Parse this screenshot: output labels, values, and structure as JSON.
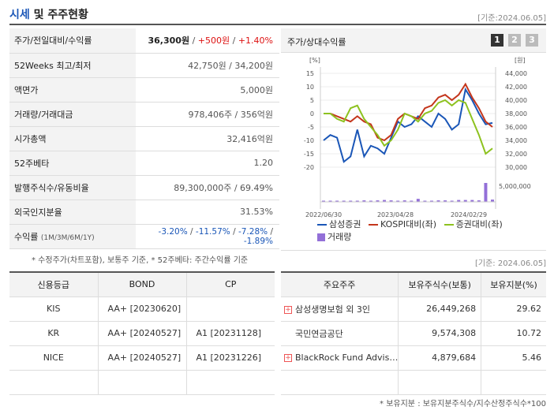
{
  "header": {
    "title_a": "시세",
    "title_b": " 및 주주현황",
    "date": "[기준:2024.06.05]"
  },
  "summary": {
    "price_label": "주가/전일대비/수익률",
    "price": "36,300원",
    "change": "+500원",
    "change_pct": "+1.40%",
    "w52_label": "52Weeks 최고/최저",
    "w52_value": "42,750원 / 34,200원",
    "par_label": "액면가",
    "par_value": "5,000원",
    "volume_label": "거래량/거래대금",
    "volume_value": "978,406주 / 356억원",
    "mcap_label": "시가총액",
    "mcap_value": "32,416억원",
    "beta_label": "52주베타",
    "beta_value": "1.20",
    "shares_label": "발행주식수/유동비율",
    "shares_value": "89,300,000주 / 69.49%",
    "foreign_label": "외국인지분율",
    "foreign_value": "31.53%",
    "return_label": "수익률",
    "return_sub": "(1M/3M/6M/1Y)",
    "return_1m": "-3.20%",
    "return_3m": "-11.57%",
    "return_6m": "-7.28%",
    "return_1y": "-1.89%"
  },
  "chart_panel": {
    "title": "주가/상대수익률",
    "pages": [
      "1",
      "2",
      "3"
    ]
  },
  "chart_data": {
    "type": "line",
    "left_unit": "[%]",
    "right_unit": "[원]",
    "left_ticks": [
      "15",
      "10",
      "5",
      "0",
      "-5",
      "-10",
      "-15",
      "-20"
    ],
    "right_ticks": [
      "44,000",
      "42,000",
      "40,000",
      "38,000",
      "36,000",
      "34,000",
      "32,000",
      "30,000"
    ],
    "volume_tick": "5,000,000",
    "x_labels": [
      "2022/06/30",
      "2023/04/28",
      "2024/02/29"
    ],
    "series": [
      {
        "name": "삼성증권",
        "color": "#1a56b7",
        "values": [
          -10,
          -8,
          -9,
          -18,
          -16,
          -6,
          -16,
          -12,
          -13,
          -15,
          -9,
          -3,
          -5,
          -4,
          -1,
          -3,
          -5,
          0,
          -2,
          -6,
          -4,
          9,
          5,
          0,
          -4,
          -3.5
        ]
      },
      {
        "name": "KOSPI대비(좌)",
        "color": "#c4361c",
        "values": [
          0,
          0,
          -1,
          -2,
          -3,
          -1,
          -3,
          -4,
          -9,
          -10,
          -8,
          -2,
          0,
          -1,
          -2,
          2,
          3,
          6,
          7,
          5,
          7,
          11,
          6,
          2,
          -3,
          -5
        ]
      },
      {
        "name": "증권대비(좌)",
        "color": "#8dc21f",
        "values": [
          0,
          0,
          -2,
          -3,
          2,
          3,
          -2,
          -5,
          -8,
          -12,
          -10,
          -6,
          0,
          -1,
          -3,
          0,
          1,
          4,
          5,
          3,
          5,
          4,
          -2,
          -8,
          -15,
          -13
        ]
      }
    ],
    "volume": {
      "name": "거래량",
      "color": "#9370d8",
      "values": [
        0.3,
        0.3,
        0.3,
        0.3,
        0.3,
        0.3,
        0.4,
        0.3,
        0.4,
        0.5,
        0.4,
        0.3,
        0.4,
        0.3,
        0.8,
        0.3,
        0.3,
        0.4,
        0.4,
        0.3,
        0.5,
        0.5,
        0.5,
        0.4,
        5,
        0.6
      ]
    }
  },
  "notes": {
    "chart_note": "* 수정주가(차트포함), 보통주 기준, * 52주베타: 주간수익률 기준",
    "date2": "[기준: 2024.06.05]",
    "holder_note": "* 보유지분 : 보유지분주식수/지수산정주식수*100"
  },
  "credit": {
    "headers": [
      "신용등급",
      "BOND",
      "CP"
    ],
    "rows": [
      {
        "agency": "KIS",
        "bond": "AA+  [20230620]",
        "cp": ""
      },
      {
        "agency": "KR",
        "bond": "AA+  [20240527]",
        "cp": "A1  [20231128]"
      },
      {
        "agency": "NICE",
        "bond": "AA+  [20240527]",
        "cp": "A1  [20231226]"
      },
      {
        "agency": "",
        "bond": "",
        "cp": ""
      }
    ]
  },
  "holders": {
    "headers": [
      "주요주주",
      "보유주식수(보통)",
      "보유지분(%)"
    ],
    "rows": [
      {
        "name": "삼성생명보험 외 3인",
        "shares": "26,449,268",
        "pct": "29.62",
        "expand": true
      },
      {
        "name": "국민연금공단",
        "shares": "9,574,308",
        "pct": "10.72",
        "expand": false
      },
      {
        "name": "BlackRock Fund Advis…",
        "shares": "4,879,684",
        "pct": "5.46",
        "expand": true
      },
      {
        "name": "",
        "shares": "",
        "pct": "",
        "expand": false
      }
    ]
  }
}
